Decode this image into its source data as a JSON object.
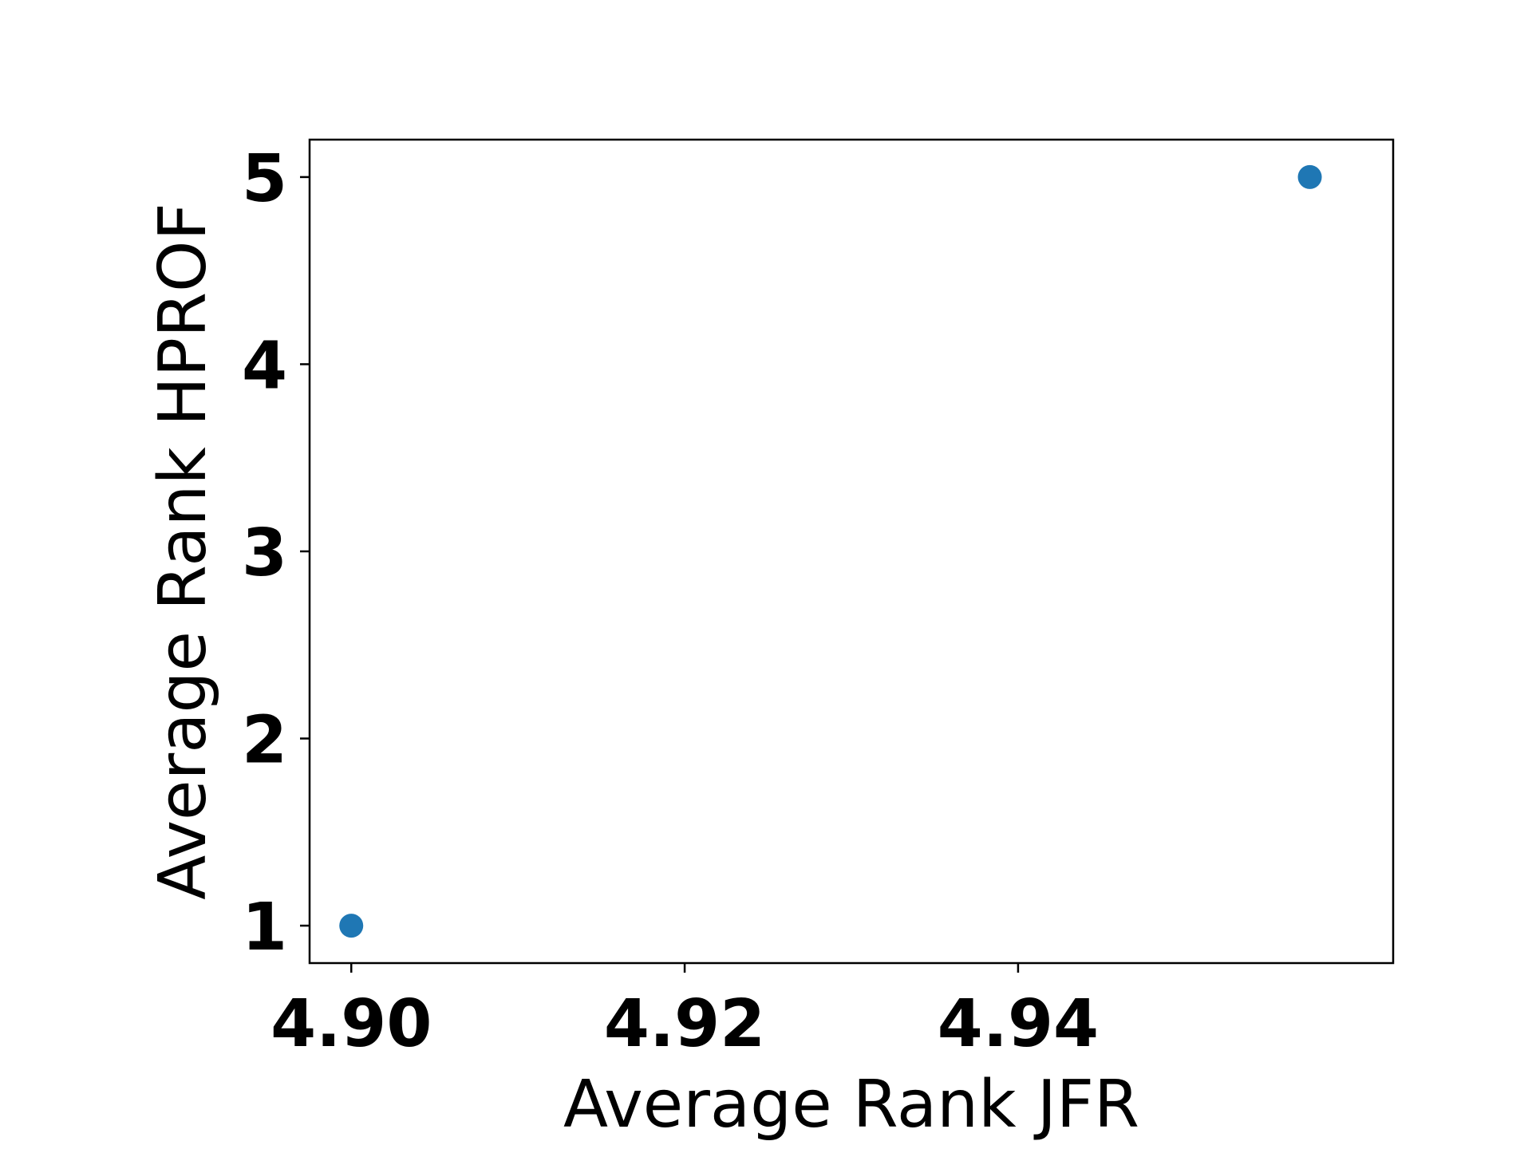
{
  "chart_data": {
    "type": "scatter",
    "title": "",
    "xlabel": "Average Rank JFR",
    "ylabel": "Average Rank HPROF",
    "xlim": [
      4.8975,
      4.9625
    ],
    "ylim": [
      0.8,
      5.2
    ],
    "xticks": [
      4.9,
      4.92,
      4.94
    ],
    "xtick_labels": [
      "4.90",
      "4.92",
      "4.94"
    ],
    "yticks": [
      1,
      2,
      3,
      4,
      5
    ],
    "ytick_labels": [
      "1",
      "2",
      "3",
      "4",
      "5"
    ],
    "grid": false,
    "legend": "none",
    "point_color": "#1f77b4",
    "points": [
      {
        "x": 4.9,
        "y": 1
      },
      {
        "x": 4.9575,
        "y": 5
      }
    ]
  }
}
